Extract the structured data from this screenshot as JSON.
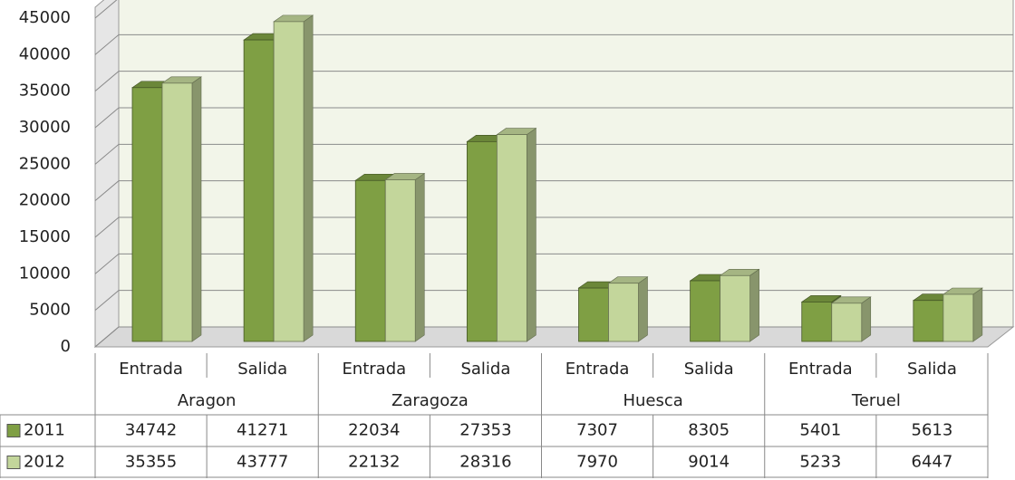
{
  "chart_data": {
    "type": "bar",
    "categories": [
      "Entrada",
      "Salida",
      "Entrada",
      "Salida",
      "Entrada",
      "Salida",
      "Entrada",
      "Salida"
    ],
    "groups": [
      "Aragon",
      "Zaragoza",
      "Huesca",
      "Teruel"
    ],
    "series": [
      {
        "name": "2011",
        "color": "#7f9f44",
        "values": [
          34742,
          41271,
          22034,
          27353,
          7307,
          8305,
          5401,
          5613
        ]
      },
      {
        "name": "2012",
        "color": "#c3d69b",
        "values": [
          35355,
          43777,
          22132,
          28316,
          7970,
          9014,
          5233,
          6447
        ]
      }
    ],
    "ylim": [
      0,
      45000
    ],
    "yticks": [
      0,
      5000,
      10000,
      15000,
      20000,
      25000,
      30000,
      35000,
      40000,
      45000
    ],
    "grid": true
  }
}
